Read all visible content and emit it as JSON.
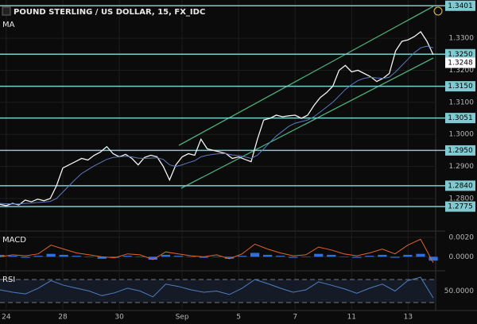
{
  "chart_data": [
    {
      "type": "line",
      "title": "POUND STERLING / US DOLLAR, 15, FX_IDC",
      "indicator": "MA",
      "xlim": [
        0,
        69
      ],
      "ylim": [
        1.2701,
        1.3419
      ],
      "xticks": [
        {
          "value": 1,
          "label": "24"
        },
        {
          "value": 10,
          "label": "28"
        },
        {
          "value": 19,
          "label": "30"
        },
        {
          "value": 29,
          "label": "Sep"
        },
        {
          "value": 38,
          "label": "5"
        },
        {
          "value": 47,
          "label": "7"
        },
        {
          "value": 56,
          "label": "11"
        },
        {
          "value": 65,
          "label": "13"
        }
      ],
      "yticks": [
        {
          "value": 1.33,
          "label": "1.3300"
        },
        {
          "value": 1.32,
          "label": "1.3200"
        },
        {
          "value": 1.31,
          "label": "1.3100"
        },
        {
          "value": 1.3,
          "label": "1.3000"
        },
        {
          "value": 1.29,
          "label": "1.2900"
        },
        {
          "value": 1.28,
          "label": "1.2800"
        }
      ],
      "levels": [
        1.3401,
        {
          "value": 1.325,
          "label": "1.3250"
        },
        {
          "value": 1.315,
          "label": "1.3150"
        },
        1.3051,
        {
          "value": 1.295,
          "label": "1.2950"
        },
        {
          "value": 1.284,
          "label": "1.2840"
        },
        1.2775
      ],
      "level_color": "#7fcbd1",
      "last_price": 1.3248,
      "series": [
        {
          "color": "#f2f2f2",
          "values": [
            1.2782,
            1.2778,
            1.2785,
            1.278,
            1.2795,
            1.279,
            1.2798,
            1.2793,
            1.28,
            1.284,
            1.2895,
            1.2905,
            1.2915,
            1.2925,
            1.292,
            1.2935,
            1.2945,
            1.2962,
            1.294,
            1.293,
            1.2938,
            1.2925,
            1.2905,
            1.2928,
            1.2935,
            1.293,
            1.29,
            1.2858,
            1.2905,
            1.293,
            1.294,
            1.2935,
            1.2985,
            1.2955,
            1.295,
            1.2945,
            1.294,
            1.2925,
            1.293,
            1.2922,
            1.2915,
            1.2985,
            1.3045,
            1.305,
            1.306,
            1.3055,
            1.3058,
            1.306,
            1.305,
            1.306,
            1.309,
            1.3115,
            1.313,
            1.315,
            1.32,
            1.3215,
            1.3195,
            1.32,
            1.319,
            1.318,
            1.3165,
            1.3175,
            1.319,
            1.326,
            1.329,
            1.3295,
            1.3305,
            1.332,
            1.329,
            1.3248
          ]
        },
        {
          "name": "MA",
          "color": "#5b7bc0",
          "values": [
            1.2785,
            1.2784,
            1.2783,
            1.2783,
            1.2785,
            1.2786,
            1.2788,
            1.2789,
            1.2791,
            1.28,
            1.282,
            1.284,
            1.286,
            1.2878,
            1.289,
            1.2902,
            1.2912,
            1.2922,
            1.2928,
            1.293,
            1.2932,
            1.293,
            1.2926,
            1.2925,
            1.2926,
            1.2927,
            1.2922,
            1.2905,
            1.29,
            1.2905,
            1.2912,
            1.2918,
            1.293,
            1.2935,
            1.2938,
            1.294,
            1.294,
            1.2936,
            1.2934,
            1.293,
            1.2925,
            1.2935,
            1.2955,
            1.2975,
            1.2995,
            1.301,
            1.3025,
            1.3035,
            1.304,
            1.3045,
            1.3055,
            1.307,
            1.3085,
            1.31,
            1.312,
            1.314,
            1.3155,
            1.3168,
            1.3175,
            1.3178,
            1.3176,
            1.3175,
            1.3178,
            1.3195,
            1.3215,
            1.3235,
            1.3255,
            1.327,
            1.3275,
            1.327
          ]
        }
      ]
    },
    {
      "type": "macd",
      "title": "MACD",
      "xlim": [
        0,
        34
      ],
      "ylim": [
        -0.00136,
        0.00248
      ],
      "yticks": [
        {
          "value": 0.002,
          "label": "0.0020"
        },
        {
          "value": 0,
          "label": "0.0000"
        }
      ],
      "series": [
        {
          "type": "bar",
          "color": "#2f6fe0",
          "values": [
            0.0002,
            0.0001,
            -0.0001,
            0.0001,
            0.0003,
            0.0002,
            0.0001,
            0,
            -0.0002,
            -0.0001,
            0.0001,
            0,
            -0.0003,
            0.0002,
            0.0001,
            0,
            -0.0001,
            0,
            -0.0002,
            0.0001,
            0.0004,
            0.0002,
            0.0001,
            -0.0001,
            0,
            0.0003,
            0.0002,
            0,
            -0.0001,
            0.0001,
            0.0002,
            -0.0001,
            0.0002,
            0.0003,
            -0.0004
          ]
        },
        {
          "type": "line",
          "color": "#e0642a",
          "values": [
            0,
            0.0002,
            0.0001,
            0.0003,
            0.0012,
            0.0008,
            0.0004,
            0.0002,
            0,
            -0.0001,
            0.0003,
            0.0002,
            -0.0003,
            0.0005,
            0.0003,
            0.0001,
            0,
            0.0002,
            -0.0002,
            0.0003,
            0.0013,
            0.0008,
            0.0004,
            0.0001,
            0.0002,
            0.001,
            0.0007,
            0.0003,
            0.0001,
            0.0004,
            0.0008,
            0.0003,
            0.0012,
            0.0018,
            -0.0006
          ]
        }
      ]
    },
    {
      "type": "line",
      "title": "RSI",
      "xlim": [
        0,
        34
      ],
      "ylim": [
        17.6,
        82.4
      ],
      "yticks": [
        {
          "value": 50,
          "label": "50.0000"
        }
      ],
      "bands": [
        70,
        30
      ],
      "series": [
        {
          "color": "#4f7fbf",
          "values": [
            52,
            48,
            45,
            55,
            68,
            60,
            55,
            50,
            42,
            47,
            55,
            50,
            40,
            62,
            58,
            52,
            48,
            50,
            44,
            55,
            70,
            63,
            55,
            48,
            52,
            66,
            60,
            54,
            46,
            55,
            62,
            50,
            68,
            74,
            38
          ]
        }
      ]
    }
  ]
}
